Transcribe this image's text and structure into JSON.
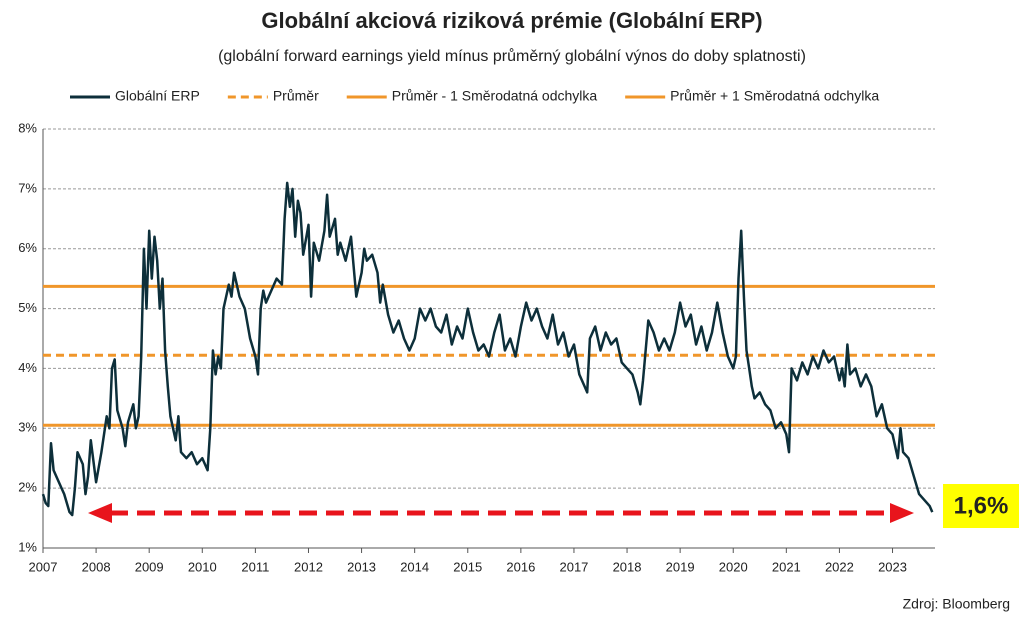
{
  "chart_data": {
    "type": "line",
    "title": "Globální akciová riziková prémie (Globální ERP)",
    "subtitle": "(globální forward earnings yield mínus průměrný globální výnos do doby splatnosti)",
    "source": "Zdroj: Bloomberg",
    "annotation": "1,6%",
    "x": [
      2007.0,
      2007.05,
      2007.1,
      2007.15,
      2007.2,
      2007.3,
      2007.4,
      2007.5,
      2007.55,
      2007.6,
      2007.65,
      2007.75,
      2007.8,
      2007.85,
      2007.9,
      2008.0,
      2008.1,
      2008.2,
      2008.25,
      2008.3,
      2008.35,
      2008.4,
      2008.5,
      2008.55,
      2008.6,
      2008.7,
      2008.75,
      2008.8,
      2008.85,
      2008.9,
      2008.95,
      2009.0,
      2009.05,
      2009.1,
      2009.15,
      2009.2,
      2009.25,
      2009.3,
      2009.35,
      2009.4,
      2009.5,
      2009.55,
      2009.6,
      2009.7,
      2009.8,
      2009.9,
      2010.0,
      2010.1,
      2010.15,
      2010.2,
      2010.25,
      2010.3,
      2010.35,
      2010.4,
      2010.5,
      2010.55,
      2010.6,
      2010.7,
      2010.8,
      2010.9,
      2011.0,
      2011.05,
      2011.1,
      2011.15,
      2011.2,
      2011.3,
      2011.4,
      2011.5,
      2011.55,
      2011.6,
      2011.65,
      2011.7,
      2011.75,
      2011.8,
      2011.85,
      2011.9,
      2012.0,
      2012.05,
      2012.1,
      2012.2,
      2012.3,
      2012.35,
      2012.4,
      2012.5,
      2012.55,
      2012.6,
      2012.7,
      2012.8,
      2012.9,
      2013.0,
      2013.05,
      2013.1,
      2013.2,
      2013.3,
      2013.35,
      2013.4,
      2013.5,
      2013.6,
      2013.7,
      2013.8,
      2013.9,
      2014.0,
      2014.1,
      2014.2,
      2014.3,
      2014.4,
      2014.5,
      2014.6,
      2014.7,
      2014.8,
      2014.9,
      2015.0,
      2015.1,
      2015.2,
      2015.3,
      2015.4,
      2015.5,
      2015.6,
      2015.7,
      2015.8,
      2015.9,
      2016.0,
      2016.1,
      2016.2,
      2016.3,
      2016.4,
      2016.5,
      2016.6,
      2016.7,
      2016.8,
      2016.9,
      2017.0,
      2017.1,
      2017.2,
      2017.25,
      2017.3,
      2017.4,
      2017.5,
      2017.6,
      2017.7,
      2017.8,
      2017.9,
      2018.0,
      2018.1,
      2018.2,
      2018.25,
      2018.3,
      2018.4,
      2018.5,
      2018.6,
      2018.7,
      2018.8,
      2018.9,
      2019.0,
      2019.1,
      2019.2,
      2019.3,
      2019.4,
      2019.5,
      2019.6,
      2019.7,
      2019.8,
      2019.9,
      2020.0,
      2020.05,
      2020.1,
      2020.15,
      2020.2,
      2020.25,
      2020.3,
      2020.35,
      2020.4,
      2020.5,
      2020.6,
      2020.7,
      2020.8,
      2020.9,
      2021.0,
      2021.05,
      2021.1,
      2021.2,
      2021.3,
      2021.4,
      2021.5,
      2021.6,
      2021.7,
      2021.8,
      2021.9,
      2022.0,
      2022.05,
      2022.1,
      2022.15,
      2022.2,
      2022.3,
      2022.4,
      2022.5,
      2022.6,
      2022.7,
      2022.8,
      2022.9,
      2023.0,
      2023.1,
      2023.15,
      2023.2,
      2023.3,
      2023.4,
      2023.5,
      2023.6,
      2023.7,
      2023.75
    ],
    "series": [
      {
        "name": "Globální ERP",
        "color": "#0d2f3a",
        "values": [
          1.9,
          1.75,
          1.7,
          2.75,
          2.3,
          2.1,
          1.9,
          1.6,
          1.55,
          2.0,
          2.6,
          2.4,
          1.9,
          2.2,
          2.8,
          2.1,
          2.6,
          3.2,
          3.0,
          4.0,
          4.15,
          3.3,
          3.0,
          2.7,
          3.1,
          3.4,
          3.0,
          3.2,
          4.2,
          6.0,
          5.0,
          6.3,
          5.5,
          6.2,
          5.8,
          5.0,
          5.5,
          4.3,
          3.7,
          3.2,
          2.8,
          3.2,
          2.6,
          2.5,
          2.6,
          2.4,
          2.5,
          2.3,
          3.0,
          4.3,
          3.9,
          4.2,
          4.0,
          5.0,
          5.4,
          5.2,
          5.6,
          5.2,
          5.0,
          4.5,
          4.2,
          3.9,
          5.0,
          5.3,
          5.1,
          5.3,
          5.5,
          5.4,
          6.5,
          7.1,
          6.7,
          7.0,
          6.2,
          6.8,
          6.6,
          5.9,
          6.4,
          5.2,
          6.1,
          5.8,
          6.3,
          6.9,
          6.2,
          6.5,
          5.9,
          6.1,
          5.8,
          6.2,
          5.2,
          5.6,
          6.0,
          5.8,
          5.9,
          5.6,
          5.1,
          5.4,
          4.9,
          4.6,
          4.8,
          4.5,
          4.3,
          4.5,
          5.0,
          4.8,
          5.0,
          4.7,
          4.6,
          4.9,
          4.4,
          4.7,
          4.5,
          5.0,
          4.6,
          4.3,
          4.4,
          4.2,
          4.6,
          4.9,
          4.3,
          4.5,
          4.2,
          4.7,
          5.1,
          4.8,
          5.0,
          4.7,
          4.5,
          4.9,
          4.4,
          4.6,
          4.2,
          4.4,
          3.9,
          3.7,
          3.6,
          4.5,
          4.7,
          4.3,
          4.6,
          4.4,
          4.5,
          4.1,
          4.0,
          3.9,
          3.6,
          3.4,
          3.8,
          4.8,
          4.6,
          4.3,
          4.5,
          4.3,
          4.6,
          5.1,
          4.7,
          4.9,
          4.4,
          4.7,
          4.3,
          4.6,
          5.1,
          4.6,
          4.2,
          4.0,
          4.2,
          5.5,
          6.3,
          5.2,
          4.3,
          4.0,
          3.7,
          3.5,
          3.6,
          3.4,
          3.3,
          3.0,
          3.1,
          2.9,
          2.6,
          4.0,
          3.8,
          4.1,
          3.9,
          4.2,
          4.0,
          4.3,
          4.1,
          4.2,
          3.8,
          4.0,
          3.7,
          4.4,
          3.9,
          4.0,
          3.7,
          3.9,
          3.7,
          3.2,
          3.4,
          3.0,
          2.9,
          2.5,
          3.0,
          2.6,
          2.5,
          2.2,
          1.9,
          1.8,
          1.7,
          1.6
        ]
      }
    ],
    "reference_lines": [
      {
        "name": "Průměr",
        "value": 4.22,
        "color": "#f0962a",
        "dashed": true
      },
      {
        "name": "Průměr - 1 Směrodatná odchylka",
        "value": 3.05,
        "color": "#f0962a",
        "dashed": false
      },
      {
        "name": "Průměr + 1 Směrodatná odchylka",
        "value": 5.37,
        "color": "#f0962a",
        "dashed": false
      }
    ],
    "xlim": [
      2007,
      2023.8
    ],
    "xticks": [
      2007,
      2008,
      2009,
      2010,
      2011,
      2012,
      2013,
      2014,
      2015,
      2016,
      2017,
      2018,
      2019,
      2020,
      2021,
      2022,
      2023
    ],
    "ylim": [
      1,
      8
    ],
    "yticks": [
      {
        "value": 1,
        "label": "1%"
      },
      {
        "value": 2,
        "label": "2%"
      },
      {
        "value": 3,
        "label": "3%"
      },
      {
        "value": 4,
        "label": "4%"
      },
      {
        "value": 5,
        "label": "5%"
      },
      {
        "value": 6,
        "label": "6%"
      },
      {
        "value": 7,
        "label": "7%"
      },
      {
        "value": 8,
        "label": "8%"
      }
    ],
    "grid": true
  }
}
